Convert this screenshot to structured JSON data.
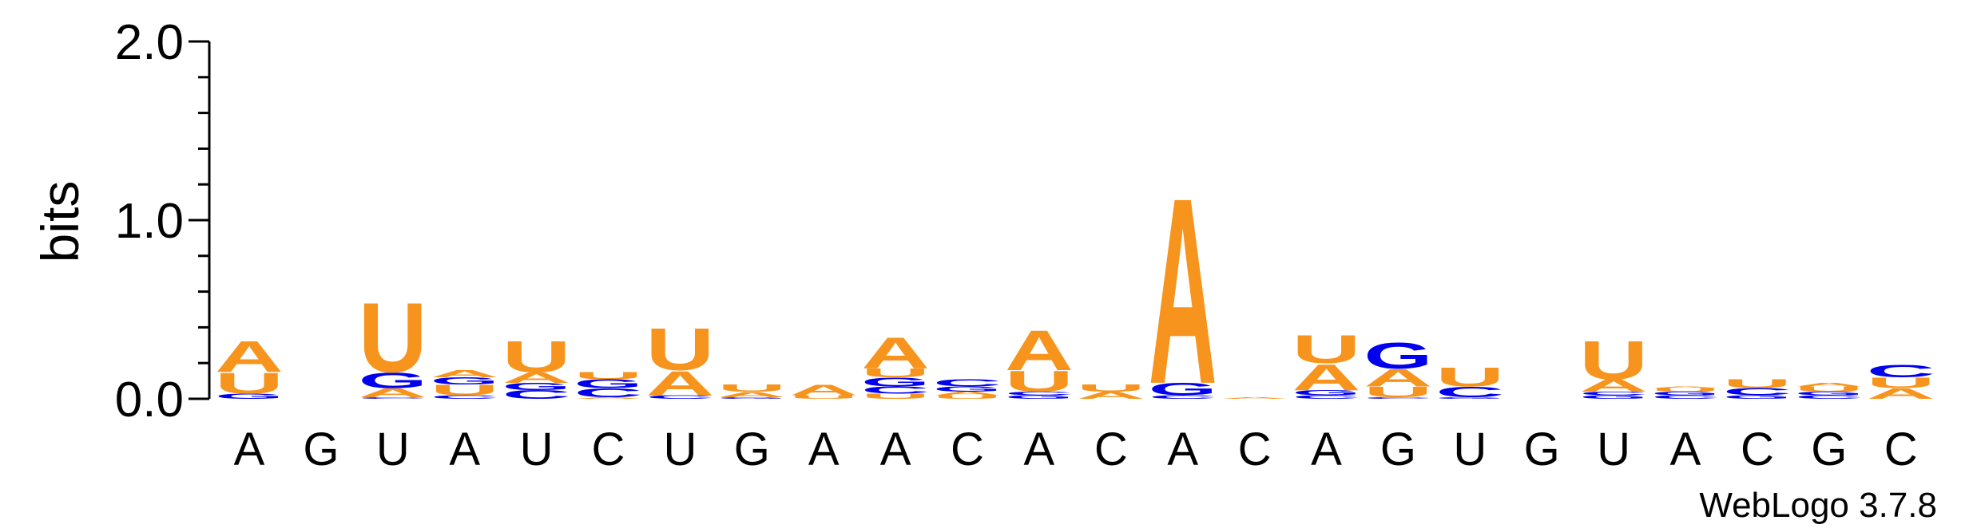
{
  "chart_data": {
    "type": "sequence-logo",
    "ylabel": "bits",
    "ylim": [
      0,
      2.0
    ],
    "yticks": [
      "0.0",
      "1.0",
      "2.0"
    ],
    "credit": "WebLogo 3.7.8",
    "colors": {
      "A": "#f7941d",
      "U": "#f7941d",
      "G": "#0000ee",
      "C": "#0000ee"
    },
    "positions": [
      {
        "label": "A",
        "stack": [
          {
            "b": "G",
            "h": 0.03
          },
          {
            "b": "U",
            "h": 0.12
          },
          {
            "b": "A",
            "h": 0.18
          }
        ]
      },
      {
        "label": "G",
        "stack": []
      },
      {
        "label": "U",
        "stack": [
          {
            "b": "C",
            "h": 0.01
          },
          {
            "b": "A",
            "h": 0.05
          },
          {
            "b": "G",
            "h": 0.09
          },
          {
            "b": "U",
            "h": 0.4
          }
        ]
      },
      {
        "label": "A",
        "stack": [
          {
            "b": "C",
            "h": 0.02
          },
          {
            "b": "U",
            "h": 0.06
          },
          {
            "b": "G",
            "h": 0.04
          },
          {
            "b": "A",
            "h": 0.04
          }
        ]
      },
      {
        "label": "U",
        "stack": [
          {
            "b": "C",
            "h": 0.05
          },
          {
            "b": "G",
            "h": 0.04
          },
          {
            "b": "A",
            "h": 0.06
          },
          {
            "b": "U",
            "h": 0.18
          }
        ]
      },
      {
        "label": "C",
        "stack": [
          {
            "b": "A",
            "h": 0.01
          },
          {
            "b": "C",
            "h": 0.05
          },
          {
            "b": "G",
            "h": 0.05
          },
          {
            "b": "U",
            "h": 0.04
          }
        ]
      },
      {
        "label": "U",
        "stack": [
          {
            "b": "C",
            "h": 0.02
          },
          {
            "b": "A",
            "h": 0.14
          },
          {
            "b": "U",
            "h": 0.24
          }
        ]
      },
      {
        "label": "G",
        "stack": [
          {
            "b": "G",
            "h": 0.01
          },
          {
            "b": "A",
            "h": 0.03
          },
          {
            "b": "U",
            "h": 0.04
          }
        ]
      },
      {
        "label": "A",
        "stack": [
          {
            "b": "U",
            "h": 0.02
          },
          {
            "b": "A",
            "h": 0.06
          }
        ]
      },
      {
        "label": "A",
        "stack": [
          {
            "b": "U",
            "h": 0.03
          },
          {
            "b": "C",
            "h": 0.04
          },
          {
            "b": "G",
            "h": 0.05
          },
          {
            "b": "U",
            "h": 0.05
          },
          {
            "b": "A",
            "h": 0.18
          }
        ]
      },
      {
        "label": "C",
        "stack": [
          {
            "b": "U",
            "h": 0.02
          },
          {
            "b": "A",
            "h": 0.02
          },
          {
            "b": "G",
            "h": 0.03
          },
          {
            "b": "C",
            "h": 0.04
          }
        ]
      },
      {
        "label": "A",
        "stack": [
          {
            "b": "G",
            "h": 0.02
          },
          {
            "b": "C",
            "h": 0.02
          },
          {
            "b": "U",
            "h": 0.12
          },
          {
            "b": "A",
            "h": 0.23
          }
        ]
      },
      {
        "label": "C",
        "stack": [
          {
            "b": "A",
            "h": 0.04
          },
          {
            "b": "U",
            "h": 0.04
          }
        ]
      },
      {
        "label": "A",
        "stack": [
          {
            "b": "C",
            "h": 0.02
          },
          {
            "b": "G",
            "h": 0.07
          },
          {
            "b": "A",
            "h": 1.07
          }
        ]
      },
      {
        "label": "C",
        "stack": [
          {
            "b": "A",
            "h": 0.01
          }
        ]
      },
      {
        "label": "A",
        "stack": [
          {
            "b": "C",
            "h": 0.02
          },
          {
            "b": "G",
            "h": 0.03
          },
          {
            "b": "A",
            "h": 0.15
          },
          {
            "b": "U",
            "h": 0.16
          }
        ]
      },
      {
        "label": "G",
        "stack": [
          {
            "b": "C",
            "h": 0.01
          },
          {
            "b": "U",
            "h": 0.06
          },
          {
            "b": "A",
            "h": 0.1
          },
          {
            "b": "G",
            "h": 0.15
          }
        ]
      },
      {
        "label": "U",
        "stack": [
          {
            "b": "G",
            "h": 0.01
          },
          {
            "b": "C",
            "h": 0.06
          },
          {
            "b": "U",
            "h": 0.11
          }
        ]
      },
      {
        "label": "G",
        "stack": []
      },
      {
        "label": "U",
        "stack": [
          {
            "b": "G",
            "h": 0.02
          },
          {
            "b": "C",
            "h": 0.02
          },
          {
            "b": "A",
            "h": 0.07
          },
          {
            "b": "U",
            "h": 0.22
          }
        ]
      },
      {
        "label": "A",
        "stack": [
          {
            "b": "C",
            "h": 0.02
          },
          {
            "b": "G",
            "h": 0.02
          },
          {
            "b": "U",
            "h": 0.02
          },
          {
            "b": "A",
            "h": 0.01
          }
        ]
      },
      {
        "label": "C",
        "stack": [
          {
            "b": "G",
            "h": 0.02
          },
          {
            "b": "C",
            "h": 0.04
          },
          {
            "b": "U",
            "h": 0.05
          }
        ]
      },
      {
        "label": "G",
        "stack": [
          {
            "b": "C",
            "h": 0.02
          },
          {
            "b": "G",
            "h": 0.02
          },
          {
            "b": "U",
            "h": 0.03
          },
          {
            "b": "A",
            "h": 0.02
          }
        ]
      },
      {
        "label": "C",
        "stack": [
          {
            "b": "A",
            "h": 0.06
          },
          {
            "b": "U",
            "h": 0.06
          },
          {
            "b": "C",
            "h": 0.07
          }
        ]
      }
    ]
  }
}
